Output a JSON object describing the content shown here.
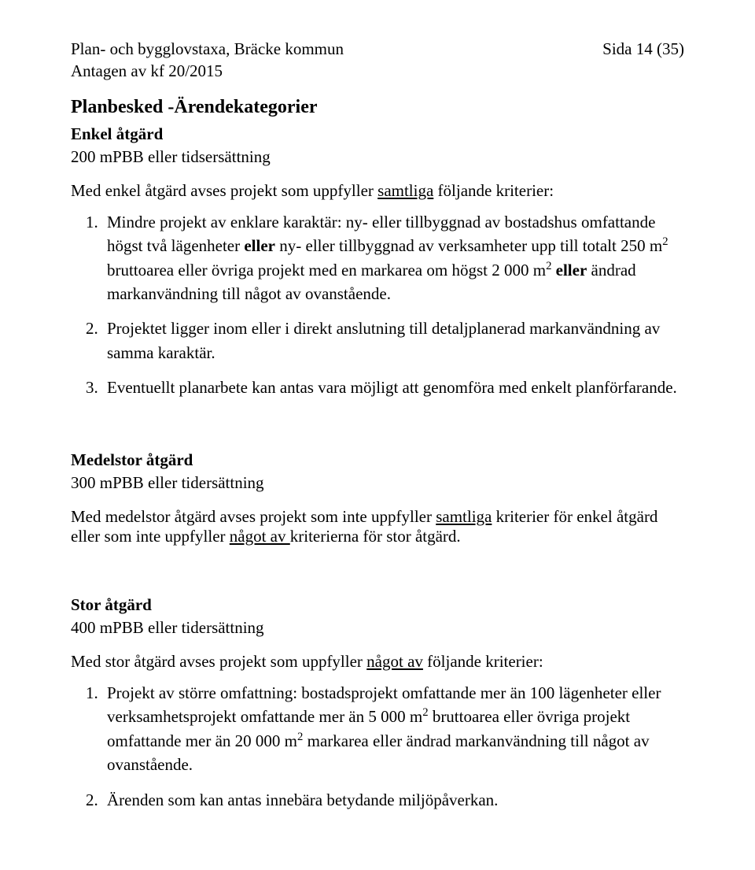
{
  "header": {
    "title_line1": "Plan- och bygglovstaxa, Bräcke kommun",
    "title_line2": "Antagen av kf 20/2015",
    "page_label": "Sida 14 (35)"
  },
  "main": {
    "section_title": "Planbesked -Ärendekategorier",
    "enkel": {
      "heading": "Enkel åtgärd",
      "price": "200 mPBB eller tidsersättning",
      "intro_pre": "Med enkel åtgärd avses projekt som uppfyller ",
      "intro_underlined": "samtliga",
      "intro_post": " följande kriterier:",
      "items": {
        "i1": {
          "a": "Mindre projekt av enklare karaktär: ny- eller tillbyggnad av bostadshus omfattande högst två lägenheter ",
          "b_bold": "eller",
          "c": " ny- eller tillbyggnad av verksamheter upp till totalt 250 m",
          "sup2": "2",
          "d": " bruttoarea eller övriga projekt med en markarea om högst 2 000 m",
          "e_bold": " eller",
          "f": " ändrad markanvändning till något av ovanstående."
        },
        "i2": "Projektet ligger inom eller i direkt anslutning till detaljplanerad markanvändning av samma karaktär.",
        "i3": "Eventuellt planarbete kan antas vara möjligt att genomföra med enkelt planförfarande."
      }
    },
    "medel": {
      "heading": "Medelstor åtgärd",
      "price": "300 mPBB eller tidersättning",
      "desc_a": "Med medelstor åtgärd avses projekt som inte uppfyller ",
      "desc_u1": "samtliga",
      "desc_b": " kriterier för enkel åtgärd eller som inte uppfyller ",
      "desc_u2": "något av ",
      "desc_c": "kriterierna för stor åtgärd."
    },
    "stor": {
      "heading": "Stor åtgärd",
      "price": "400 mPBB eller tidersättning",
      "intro_pre": "Med stor åtgärd avses projekt som uppfyller ",
      "intro_underlined": "något av",
      "intro_post": " följande kriterier:",
      "items": {
        "i1": {
          "a": "Projekt av större omfattning: bostadsprojekt omfattande mer än 100 lägenheter eller verksamhetsprojekt omfattande mer än 5 000 m",
          "sup2": "2",
          "b": " bruttoarea eller övriga projekt omfattande mer än 20 000 m",
          "c": " markarea eller ändrad markanvändning till något av ovanstående."
        },
        "i2": "Ärenden som kan antas innebära betydande miljöpåverkan."
      }
    }
  }
}
